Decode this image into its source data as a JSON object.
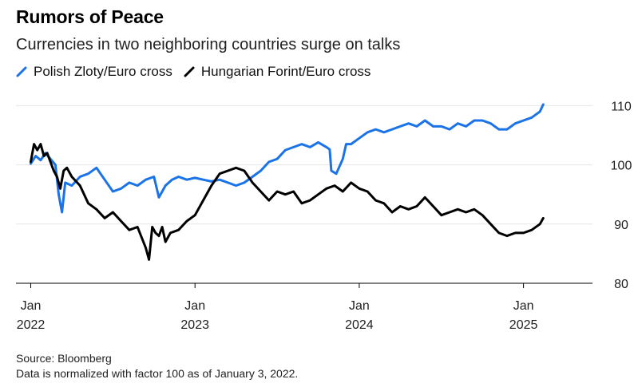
{
  "chart_data": {
    "type": "line",
    "title": "Rumors of Peace",
    "subtitle": "Currencies in two neighboring countries surge on talks",
    "ylim": [
      80,
      111
    ],
    "yticks": [
      "80",
      "90",
      "100",
      "110"
    ],
    "y_axis_side": "right",
    "xticks": [
      {
        "x": 2022.0,
        "line1": "Jan",
        "line2": "2022"
      },
      {
        "x": 2023.0,
        "line1": "Jan",
        "line2": "2023"
      },
      {
        "x": 2024.0,
        "line1": "Jan",
        "line2": "2024"
      },
      {
        "x": 2025.0,
        "line1": "Jan",
        "line2": "2025"
      }
    ],
    "xlim": [
      2021.91,
      2025.42
    ],
    "grid": true,
    "legend_position": "top-left",
    "series": [
      {
        "name": "Polish Zloty/Euro cross",
        "color": "#1a73e8",
        "x": [
          2022.0,
          2022.03,
          2022.06,
          2022.09,
          2022.12,
          2022.15,
          2022.17,
          2022.19,
          2022.21,
          2022.25,
          2022.3,
          2022.35,
          2022.4,
          2022.45,
          2022.5,
          2022.55,
          2022.6,
          2022.65,
          2022.7,
          2022.75,
          2022.78,
          2022.82,
          2022.86,
          2022.9,
          2022.95,
          2023.0,
          2023.05,
          2023.1,
          2023.15,
          2023.2,
          2023.25,
          2023.3,
          2023.35,
          2023.4,
          2023.45,
          2023.5,
          2023.55,
          2023.6,
          2023.65,
          2023.7,
          2023.75,
          2023.8,
          2023.82,
          2023.83,
          2023.86,
          2023.9,
          2023.92,
          2023.95,
          2024.0,
          2024.05,
          2024.1,
          2024.15,
          2024.2,
          2024.25,
          2024.3,
          2024.35,
          2024.4,
          2024.45,
          2024.5,
          2024.55,
          2024.6,
          2024.65,
          2024.7,
          2024.75,
          2024.8,
          2024.85,
          2024.9,
          2024.95,
          2025.0,
          2025.05,
          2025.1,
          2025.12
        ],
        "y": [
          100.2,
          101.5,
          100.8,
          102.0,
          101.0,
          100.0,
          95.0,
          92.0,
          97.0,
          96.5,
          98.0,
          98.5,
          99.5,
          97.5,
          95.5,
          96.0,
          97.0,
          96.5,
          97.5,
          98.0,
          94.5,
          96.5,
          97.5,
          98.0,
          97.5,
          97.8,
          97.5,
          97.2,
          97.5,
          97.0,
          96.5,
          97.0,
          98.0,
          99.0,
          100.5,
          101.0,
          102.5,
          103.0,
          103.5,
          103.0,
          103.8,
          103.0,
          102.6,
          99.0,
          98.5,
          101.0,
          103.5,
          103.5,
          104.5,
          105.5,
          106.0,
          105.5,
          106.0,
          106.5,
          107.0,
          106.5,
          107.5,
          106.5,
          106.5,
          106.0,
          107.0,
          106.5,
          107.5,
          107.5,
          107.0,
          106.0,
          106.0,
          107.0,
          107.5,
          108.0,
          109.0,
          110.2
        ]
      },
      {
        "name": "Hungarian Forint/Euro cross",
        "color": "#000000",
        "x": [
          2022.0,
          2022.02,
          2022.04,
          2022.06,
          2022.08,
          2022.1,
          2022.12,
          2022.14,
          2022.16,
          2022.18,
          2022.2,
          2022.22,
          2022.25,
          2022.3,
          2022.35,
          2022.4,
          2022.45,
          2022.5,
          2022.55,
          2022.6,
          2022.65,
          2022.7,
          2022.72,
          2022.74,
          2022.76,
          2022.78,
          2022.8,
          2022.82,
          2022.85,
          2022.9,
          2022.95,
          2023.0,
          2023.05,
          2023.1,
          2023.15,
          2023.2,
          2023.25,
          2023.3,
          2023.35,
          2023.4,
          2023.45,
          2023.5,
          2023.55,
          2023.6,
          2023.65,
          2023.7,
          2023.75,
          2023.8,
          2023.85,
          2023.9,
          2023.95,
          2024.0,
          2024.05,
          2024.1,
          2024.15,
          2024.2,
          2024.25,
          2024.3,
          2024.35,
          2024.4,
          2024.45,
          2024.5,
          2024.55,
          2024.6,
          2024.65,
          2024.7,
          2024.75,
          2024.8,
          2024.85,
          2024.9,
          2024.95,
          2025.0,
          2025.05,
          2025.1,
          2025.12
        ],
        "y": [
          100.5,
          103.5,
          102.5,
          103.5,
          101.5,
          102.0,
          100.5,
          99.0,
          98.0,
          96.0,
          99.0,
          99.5,
          98.0,
          96.5,
          93.5,
          92.5,
          91.0,
          92.0,
          90.5,
          89.0,
          89.5,
          86.0,
          84.0,
          89.5,
          88.5,
          88.0,
          89.5,
          87.0,
          88.5,
          89.0,
          90.5,
          91.5,
          94.0,
          96.5,
          98.5,
          99.0,
          99.5,
          99.0,
          97.0,
          95.5,
          94.0,
          95.5,
          95.0,
          95.5,
          93.5,
          94.0,
          95.0,
          96.0,
          96.5,
          95.5,
          97.0,
          96.0,
          95.5,
          94.0,
          93.5,
          92.0,
          93.0,
          92.5,
          93.0,
          94.5,
          93.0,
          91.5,
          92.0,
          92.5,
          92.0,
          92.5,
          91.5,
          90.0,
          88.5,
          88.0,
          88.5,
          88.5,
          89.0,
          90.0,
          91.0
        ]
      }
    ]
  },
  "footer": {
    "source": "Source: Bloomberg",
    "note": "Data is normalized with factor 100 as of January 3, 2022."
  }
}
